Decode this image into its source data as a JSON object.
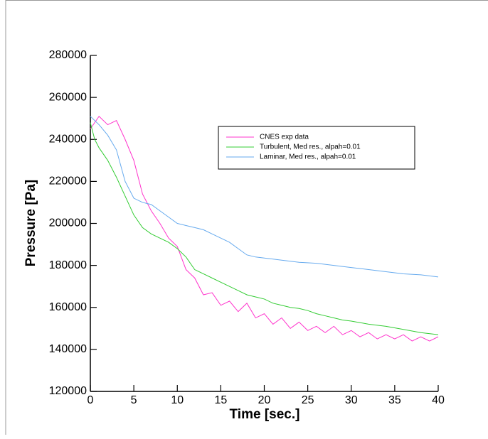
{
  "chart_data": {
    "type": "line",
    "x_label": "Time [sec.]",
    "y_label": "Pressure [Pa]",
    "xlim": [
      0,
      40
    ],
    "xticks": [
      0,
      5,
      10,
      15,
      20,
      25,
      30,
      35,
      40
    ],
    "ylim": [
      120000,
      280000
    ],
    "yticks": [
      120000,
      140000,
      160000,
      180000,
      200000,
      220000,
      240000,
      260000,
      280000
    ],
    "series": [
      {
        "name": "CNES exp data",
        "color": "#ff33cc",
        "x": [
          0,
          1,
          2,
          3,
          4,
          5,
          6,
          7,
          8,
          9,
          10,
          11,
          12,
          13,
          14,
          15,
          16,
          17,
          18,
          19,
          20,
          21,
          22,
          23,
          24,
          25,
          26,
          27,
          28,
          29,
          30,
          31,
          32,
          33,
          34,
          35,
          36,
          37,
          38,
          39,
          40
        ],
        "values": [
          245000,
          251000,
          247000,
          249000,
          240000,
          230000,
          214000,
          206000,
          200000,
          193000,
          189000,
          178000,
          174000,
          166000,
          167000,
          161000,
          163000,
          158000,
          162000,
          155000,
          157000,
          152000,
          155000,
          150000,
          153000,
          149000,
          151000,
          148000,
          151000,
          147000,
          149000,
          146000,
          148000,
          145000,
          147000,
          145000,
          147000,
          144000,
          146000,
          144000,
          146000
        ]
      },
      {
        "name": "Turbulent, Med res., alpah=0.01",
        "color": "#33cc33",
        "x": [
          0,
          0.5,
          1,
          2,
          3,
          4,
          5,
          6,
          7,
          8,
          9,
          10,
          11,
          12,
          13,
          14,
          15,
          16,
          17,
          18,
          19,
          20,
          21,
          22,
          23,
          24,
          25,
          26,
          27,
          28,
          29,
          30,
          32,
          34,
          36,
          38,
          40
        ],
        "values": [
          248000,
          240000,
          236000,
          230000,
          222000,
          213000,
          204000,
          198000,
          195000,
          193000,
          191000,
          188000,
          184000,
          178000,
          176000,
          174000,
          172000,
          170000,
          168000,
          166000,
          165000,
          164000,
          162000,
          161000,
          160000,
          159500,
          158500,
          157000,
          156000,
          155000,
          154000,
          153500,
          152000,
          151000,
          149500,
          148000,
          147000
        ]
      },
      {
        "name": "Laminar, Med res., alpah=0.01",
        "color": "#66aaee",
        "x": [
          0,
          1,
          2,
          3,
          4,
          5,
          6,
          7,
          8,
          9,
          10,
          11,
          12,
          13,
          14,
          15,
          16,
          17,
          18,
          19,
          20,
          22,
          24,
          26,
          28,
          30,
          32,
          34,
          36,
          38,
          40
        ],
        "values": [
          251000,
          247000,
          242000,
          235000,
          220000,
          212000,
          210000,
          209000,
          206000,
          203000,
          200000,
          199000,
          198000,
          197000,
          195000,
          193000,
          191000,
          188000,
          185000,
          184000,
          183500,
          182500,
          181500,
          181000,
          180000,
          179000,
          178000,
          177000,
          176000,
          175500,
          174500
        ]
      }
    ]
  }
}
